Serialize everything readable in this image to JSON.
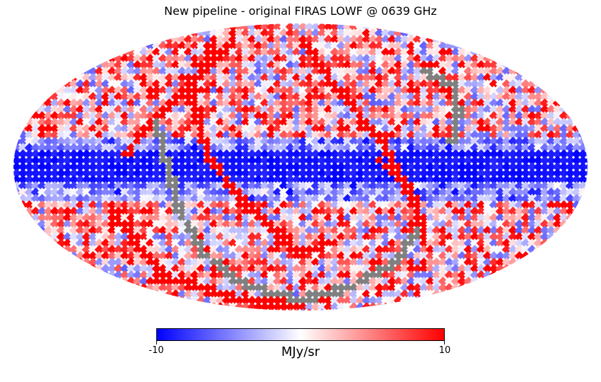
{
  "title": "New pipeline - original FIRAS LOWF @ 0639 GHz",
  "projection": "mollweide",
  "colormap": {
    "name": "bwr",
    "low_color": "#0000ff",
    "mid_color": "#ffffff",
    "high_color": "#ff0000",
    "masked_color": "#808080"
  },
  "colorbar": {
    "min": -10,
    "max": 10,
    "min_label": "-10",
    "max_label": "10",
    "units": "MJy/sr"
  }
}
